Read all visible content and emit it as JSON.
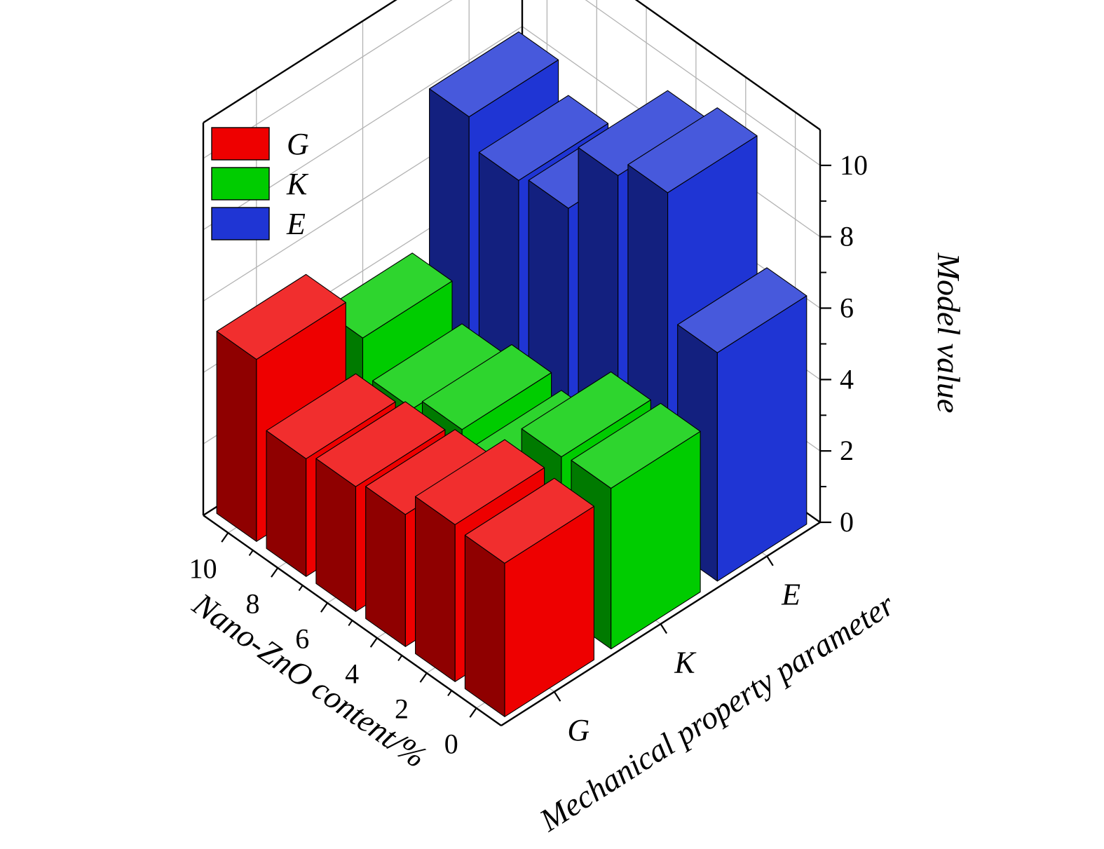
{
  "chart_data": {
    "type": "bar",
    "projection": "3d",
    "title": "",
    "xlabel": "Mechanical property parameter",
    "ylabel": "Nano-ZnO content/%",
    "zlabel": "Model value",
    "categories_param": [
      "G",
      "K",
      "E"
    ],
    "categories_content": [
      "0",
      "2",
      "4",
      "6",
      "8",
      "10"
    ],
    "content_values": [
      0,
      2,
      4,
      6,
      8,
      10
    ],
    "zticks": [
      0,
      2,
      4,
      6,
      8,
      10
    ],
    "zminorticks": [
      1,
      3,
      5,
      7,
      9
    ],
    "zlim": [
      0,
      11
    ],
    "grid": true,
    "series": [
      {
        "name": "G",
        "color": "#ee0000",
        "values": [
          4.3,
          4.4,
          3.7,
          3.5,
          3.3,
          5.1
        ]
      },
      {
        "name": "K",
        "color": "#00cc00",
        "values": [
          4.5,
          4.4,
          2.9,
          3.2,
          2.8,
          3.8
        ]
      },
      {
        "name": "E",
        "color": "#1f35d4",
        "values": [
          6.4,
          9.9,
          9.4,
          7.5,
          7.3,
          8.1
        ]
      }
    ],
    "legend": {
      "position": "top-left",
      "items": [
        "G",
        "K",
        "E"
      ]
    }
  },
  "colors": {
    "background": "#ffffff",
    "box_line": "#000000",
    "grid_line": "#b3b3b3",
    "bar_red": "#ee0000",
    "bar_green": "#00cc00",
    "bar_blue": "#1f35d4"
  }
}
